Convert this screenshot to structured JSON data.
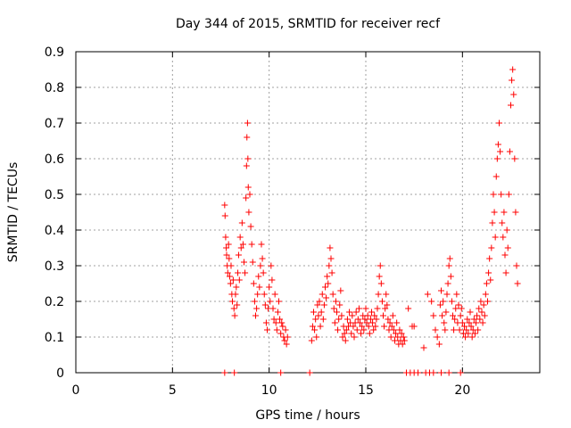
{
  "chart_data": {
    "type": "scatter",
    "title": "Day 344 of 2015, SRMTID for receiver recf",
    "xlabel": "GPS time / hours",
    "ylabel": "SRMTID / TECUs",
    "xlim": [
      0,
      24
    ],
    "ylim": [
      0,
      0.9
    ],
    "xticks": [
      0,
      5,
      10,
      15,
      20
    ],
    "xtick_labels": [
      "0",
      "5",
      "10",
      "15",
      "20"
    ],
    "yticks": [
      0,
      0.1,
      0.2,
      0.3,
      0.4,
      0.5,
      0.6,
      0.7,
      0.8,
      0.9
    ],
    "ytick_labels": [
      "0",
      "0.1",
      "0.2",
      "0.3",
      "0.4",
      "0.5",
      "0.6",
      "0.7",
      "0.8",
      "0.9"
    ],
    "grid": true,
    "marker": "+",
    "series": [
      {
        "name": "SRMTID",
        "color": "#ff0000",
        "x": [
          7.7,
          7.72,
          7.75,
          7.78,
          7.8,
          7.83,
          7.86,
          7.9,
          7.93,
          7.96,
          8.0,
          8.03,
          8.07,
          8.1,
          8.14,
          8.18,
          8.22,
          8.26,
          8.3,
          8.34,
          8.38,
          8.42,
          8.46,
          8.5,
          8.55,
          8.6,
          8.65,
          8.7,
          8.75,
          8.8,
          8.83,
          8.85,
          8.88,
          8.9,
          8.92,
          8.95,
          9.0,
          9.05,
          9.1,
          9.15,
          9.2,
          9.25,
          9.3,
          9.35,
          9.4,
          9.45,
          9.5,
          9.55,
          9.6,
          9.65,
          9.7,
          9.75,
          9.8,
          9.85,
          9.9,
          9.95,
          10.0,
          10.05,
          10.1,
          10.15,
          10.2,
          10.25,
          10.3,
          10.35,
          10.4,
          10.45,
          10.5,
          10.55,
          10.6,
          10.65,
          10.7,
          10.75,
          10.8,
          10.85,
          10.9,
          10.95,
          12.2,
          12.25,
          12.3,
          12.35,
          12.4,
          12.45,
          12.5,
          12.55,
          12.6,
          12.65,
          12.7,
          12.75,
          12.8,
          12.85,
          12.9,
          12.95,
          13.0,
          13.05,
          13.1,
          13.15,
          13.2,
          13.25,
          13.3,
          13.35,
          13.4,
          13.45,
          13.5,
          13.55,
          13.6,
          13.65,
          13.7,
          13.75,
          13.8,
          13.85,
          13.9,
          13.95,
          14.0,
          14.05,
          14.1,
          14.15,
          14.2,
          14.25,
          14.3,
          14.35,
          14.4,
          14.45,
          14.5,
          14.55,
          14.6,
          14.65,
          14.7,
          14.75,
          14.8,
          14.85,
          14.9,
          14.95,
          15.0,
          15.05,
          15.1,
          15.15,
          15.2,
          15.25,
          15.3,
          15.35,
          15.4,
          15.45,
          15.5,
          15.55,
          15.6,
          15.65,
          15.7,
          15.75,
          15.8,
          15.85,
          15.9,
          15.95,
          16.0,
          16.05,
          16.1,
          16.15,
          16.2,
          16.25,
          16.3,
          16.35,
          16.4,
          16.45,
          16.5,
          16.55,
          16.6,
          16.65,
          16.7,
          16.75,
          16.8,
          16.85,
          16.9,
          16.95,
          17.0,
          17.2,
          17.4,
          17.5,
          18.0,
          18.2,
          18.4,
          18.5,
          18.6,
          18.7,
          18.8,
          18.85,
          18.9,
          18.95,
          19.0,
          19.05,
          19.1,
          19.15,
          19.2,
          19.25,
          19.3,
          19.35,
          19.4,
          19.45,
          19.5,
          19.55,
          19.6,
          19.65,
          19.7,
          19.75,
          19.8,
          19.85,
          19.9,
          19.95,
          20.0,
          20.05,
          20.1,
          20.15,
          20.2,
          20.25,
          20.3,
          20.35,
          20.4,
          20.45,
          20.5,
          20.55,
          20.6,
          20.65,
          20.7,
          20.75,
          20.8,
          20.85,
          20.9,
          20.95,
          21.0,
          21.05,
          21.1,
          21.15,
          21.2,
          21.25,
          21.3,
          21.35,
          21.4,
          21.45,
          21.5,
          21.55,
          21.6,
          21.65,
          21.7,
          21.75,
          21.8,
          21.85,
          21.9,
          21.95,
          22.0,
          22.05,
          22.1,
          22.15,
          22.2,
          22.25,
          22.3,
          22.35,
          22.4,
          22.45,
          22.5,
          22.55,
          22.6,
          22.65,
          22.7,
          22.75,
          22.8,
          22.85,
          7.7,
          8.2,
          10.6,
          12.1,
          17.1,
          17.3,
          17.5,
          17.7,
          18.1,
          18.3,
          18.5,
          18.9,
          19.3,
          19.9
        ],
        "y": [
          0.47,
          0.44,
          0.38,
          0.35,
          0.33,
          0.3,
          0.28,
          0.36,
          0.32,
          0.27,
          0.25,
          0.3,
          0.22,
          0.2,
          0.26,
          0.18,
          0.16,
          0.22,
          0.24,
          0.19,
          0.28,
          0.33,
          0.26,
          0.38,
          0.35,
          0.42,
          0.36,
          0.31,
          0.28,
          0.49,
          0.58,
          0.66,
          0.7,
          0.6,
          0.52,
          0.45,
          0.5,
          0.41,
          0.36,
          0.31,
          0.25,
          0.2,
          0.16,
          0.18,
          0.22,
          0.27,
          0.24,
          0.3,
          0.36,
          0.32,
          0.28,
          0.22,
          0.19,
          0.14,
          0.12,
          0.18,
          0.24,
          0.2,
          0.3,
          0.26,
          0.18,
          0.15,
          0.22,
          0.14,
          0.12,
          0.17,
          0.2,
          0.15,
          0.11,
          0.14,
          0.13,
          0.1,
          0.09,
          0.12,
          0.08,
          0.1,
          0.09,
          0.13,
          0.17,
          0.12,
          0.15,
          0.1,
          0.19,
          0.16,
          0.2,
          0.13,
          0.17,
          0.22,
          0.15,
          0.19,
          0.24,
          0.21,
          0.27,
          0.25,
          0.3,
          0.35,
          0.32,
          0.28,
          0.22,
          0.18,
          0.14,
          0.2,
          0.17,
          0.12,
          0.15,
          0.19,
          0.23,
          0.16,
          0.1,
          0.13,
          0.11,
          0.09,
          0.12,
          0.15,
          0.13,
          0.17,
          0.14,
          0.11,
          0.16,
          0.13,
          0.1,
          0.14,
          0.17,
          0.12,
          0.15,
          0.18,
          0.14,
          0.11,
          0.13,
          0.16,
          0.12,
          0.15,
          0.18,
          0.14,
          0.16,
          0.13,
          0.11,
          0.15,
          0.17,
          0.14,
          0.12,
          0.16,
          0.13,
          0.15,
          0.18,
          0.22,
          0.27,
          0.3,
          0.25,
          0.2,
          0.16,
          0.13,
          0.18,
          0.22,
          0.19,
          0.15,
          0.12,
          0.14,
          0.1,
          0.13,
          0.16,
          0.12,
          0.09,
          0.11,
          0.14,
          0.1,
          0.08,
          0.12,
          0.09,
          0.11,
          0.08,
          0.1,
          0.09,
          0.18,
          0.13,
          0.13,
          0.07,
          0.22,
          0.2,
          0.16,
          0.12,
          0.1,
          0.08,
          0.19,
          0.23,
          0.16,
          0.2,
          0.14,
          0.12,
          0.17,
          0.22,
          0.25,
          0.3,
          0.32,
          0.27,
          0.2,
          0.16,
          0.12,
          0.15,
          0.18,
          0.22,
          0.14,
          0.19,
          0.12,
          0.16,
          0.18,
          0.14,
          0.11,
          0.13,
          0.1,
          0.12,
          0.15,
          0.11,
          0.14,
          0.17,
          0.13,
          0.1,
          0.12,
          0.15,
          0.11,
          0.14,
          0.16,
          0.12,
          0.18,
          0.15,
          0.2,
          0.17,
          0.14,
          0.19,
          0.16,
          0.22,
          0.25,
          0.2,
          0.28,
          0.32,
          0.26,
          0.35,
          0.42,
          0.5,
          0.45,
          0.38,
          0.55,
          0.6,
          0.64,
          0.7,
          0.62,
          0.5,
          0.42,
          0.38,
          0.45,
          0.33,
          0.28,
          0.4,
          0.35,
          0.5,
          0.62,
          0.75,
          0.82,
          0.85,
          0.78,
          0.6,
          0.45,
          0.3,
          0.25,
          0,
          0,
          0,
          0,
          0,
          0,
          0,
          0,
          0,
          0,
          0,
          0,
          0,
          0
        ]
      }
    ]
  }
}
